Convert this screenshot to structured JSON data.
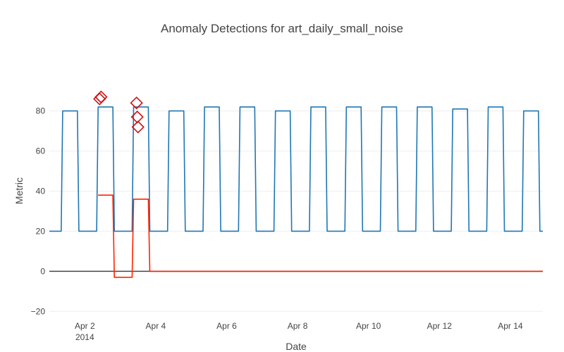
{
  "chart_data": {
    "type": "line",
    "title": "Anomaly Detections for art_daily_small_noise",
    "xlabel": "Date",
    "ylabel": "Metric",
    "xlim": [
      "2014-04-01",
      "2014-04-14"
    ],
    "ylim": [
      -22,
      102
    ],
    "y_ticks": [
      -20,
      0,
      20,
      40,
      60,
      80
    ],
    "y_tick_labels": [
      "−20",
      "0",
      "20",
      "40",
      "60",
      "80"
    ],
    "x_ticks": [
      "2014-04-02",
      "2014-04-04",
      "2014-04-06",
      "2014-04-08",
      "2014-04-10",
      "2014-04-12",
      "2014-04-14"
    ],
    "x_tick_labels": [
      "Apr 2",
      "Apr 4",
      "Apr 6",
      "Apr 8",
      "Apr 10",
      "Apr 12",
      "Apr 14"
    ],
    "x_tick_sublabel": "2014",
    "grid": "horizontal",
    "legend": "none",
    "colors": {
      "metric": "#1f77b4",
      "residual": "#ff2200",
      "anomaly": "#cc1111",
      "zero_line": "#444444"
    },
    "series": [
      {
        "style": "line",
        "color": "#1f77b4",
        "x": [
          "2014-04-01 00:00",
          "2014-04-01 08:00",
          "2014-04-01 09:00",
          "2014-04-01 19:00",
          "2014-04-01 20:00",
          "2014-04-02 08:00",
          "2014-04-02 09:00",
          "2014-04-02 19:00",
          "2014-04-02 20:00",
          "2014-04-03 08:00",
          "2014-04-03 09:00",
          "2014-04-03 19:00",
          "2014-04-03 20:00",
          "2014-04-04 08:00",
          "2014-04-04 09:00",
          "2014-04-04 19:00",
          "2014-04-04 20:00",
          "2014-04-05 08:00",
          "2014-04-05 09:00",
          "2014-04-05 19:00",
          "2014-04-05 20:00",
          "2014-04-06 08:00",
          "2014-04-06 09:00",
          "2014-04-06 19:00",
          "2014-04-06 20:00",
          "2014-04-07 08:00",
          "2014-04-07 09:00",
          "2014-04-07 19:00",
          "2014-04-07 20:00",
          "2014-04-08 08:00",
          "2014-04-08 09:00",
          "2014-04-08 19:00",
          "2014-04-08 20:00",
          "2014-04-09 08:00",
          "2014-04-09 09:00",
          "2014-04-09 19:00",
          "2014-04-09 20:00",
          "2014-04-10 08:00",
          "2014-04-10 09:00",
          "2014-04-10 19:00",
          "2014-04-10 20:00",
          "2014-04-11 08:00",
          "2014-04-11 09:00",
          "2014-04-11 19:00",
          "2014-04-11 20:00",
          "2014-04-12 08:00",
          "2014-04-12 09:00",
          "2014-04-12 19:00",
          "2014-04-12 20:00",
          "2014-04-13 08:00",
          "2014-04-13 09:00",
          "2014-04-13 19:00",
          "2014-04-13 20:00",
          "2014-04-14 08:00",
          "2014-04-14 09:00",
          "2014-04-14 19:00",
          "2014-04-14 20:00",
          "2014-04-14 22:00"
        ],
        "y": [
          20,
          20,
          80,
          80,
          20,
          20,
          82,
          82,
          20,
          20,
          82,
          82,
          20,
          20,
          80,
          80,
          20,
          20,
          82,
          82,
          20,
          20,
          82,
          82,
          20,
          20,
          80,
          80,
          20,
          20,
          82,
          82,
          20,
          20,
          82,
          82,
          20,
          20,
          82,
          82,
          20,
          20,
          82,
          82,
          20,
          20,
          81,
          81,
          20,
          20,
          82,
          82,
          20,
          20,
          80,
          80,
          20,
          20
        ]
      },
      {
        "style": "line",
        "color": "#ff2200",
        "x": [
          "2014-04-01 00:00",
          "2014-04-02 08:00",
          "2014-04-02 09:00",
          "2014-04-02 19:00",
          "2014-04-02 20:00",
          "2014-04-03 08:00",
          "2014-04-03 09:00",
          "2014-04-03 19:00",
          "2014-04-03 20:00",
          "2014-04-05 00:00",
          "2014-04-07 00:00",
          "2014-04-09 00:00",
          "2014-04-11 00:00",
          "2014-04-13 00:00",
          "2014-04-14 22:00"
        ],
        "y": [
          null,
          null,
          38,
          38,
          -3,
          -3,
          36,
          36,
          0,
          0,
          0,
          0,
          0,
          0,
          0
        ]
      }
    ],
    "anomalies": {
      "marker": "diamond-open",
      "color": "#cc1111",
      "x": [
        "2014-04-02 10:00",
        "2014-04-02 11:00",
        "2014-04-03 11:00",
        "2014-04-03 11:30",
        "2014-04-03 12:00"
      ],
      "y": [
        86,
        87,
        84,
        77,
        72
      ]
    }
  }
}
